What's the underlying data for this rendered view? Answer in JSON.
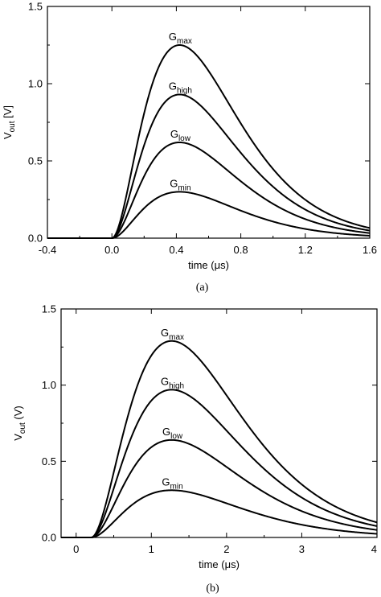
{
  "chart_data": [
    {
      "type": "line",
      "caption": "(a)",
      "xlabel": "time (μs)",
      "ylabel_main": "V",
      "ylabel_sub": "out",
      "ylabel_suffix": " [V]",
      "xlim": [
        -0.4,
        1.6
      ],
      "ylim": [
        0,
        1.5
      ],
      "xticks": [
        -0.4,
        0.0,
        0.4,
        0.8,
        1.2,
        1.6
      ],
      "xtick_labels": [
        "-0.4",
        "0.0",
        "0.4",
        "0.8",
        "1.2",
        "1.6"
      ],
      "yticks": [
        0,
        0.5,
        1.0,
        1.5
      ],
      "ytick_labels": [
        "0.0",
        "0.5",
        "1.0",
        "1.5"
      ],
      "grid": false,
      "shape": {
        "t0": 0.0,
        "t_peak": 0.42,
        "tau": 0.21
      },
      "series": [
        {
          "label_main": "G",
          "label_sub": "max",
          "peak": 1.25
        },
        {
          "label_main": "G",
          "label_sub": "high",
          "peak": 0.93
        },
        {
          "label_main": "G",
          "label_sub": "low",
          "peak": 0.62
        },
        {
          "label_main": "G",
          "label_sub": "min",
          "peak": 0.3
        }
      ]
    },
    {
      "type": "line",
      "caption": "(b)",
      "xlabel": "time (μs)",
      "ylabel_main": "V",
      "ylabel_sub": "out",
      "ylabel_suffix": " (V)",
      "xlim": [
        -0.2,
        4.0
      ],
      "ylim": [
        0,
        1.5
      ],
      "xticks": [
        0,
        1,
        2,
        3,
        4
      ],
      "xtick_labels": [
        "0",
        "1",
        "2",
        "3",
        "4"
      ],
      "yticks": [
        0,
        0.5,
        1.0,
        1.5
      ],
      "ytick_labels": [
        "0.0",
        "0.5",
        "1.0",
        "1.5"
      ],
      "grid": false,
      "shape": {
        "t0": 0.2,
        "t_peak": 1.27,
        "tau": 0.535
      },
      "series": [
        {
          "label_main": "G",
          "label_sub": "max",
          "peak": 1.29
        },
        {
          "label_main": "G",
          "label_sub": "high",
          "peak": 0.97
        },
        {
          "label_main": "G",
          "label_sub": "low",
          "peak": 0.64
        },
        {
          "label_main": "G",
          "label_sub": "min",
          "peak": 0.31
        }
      ]
    }
  ]
}
